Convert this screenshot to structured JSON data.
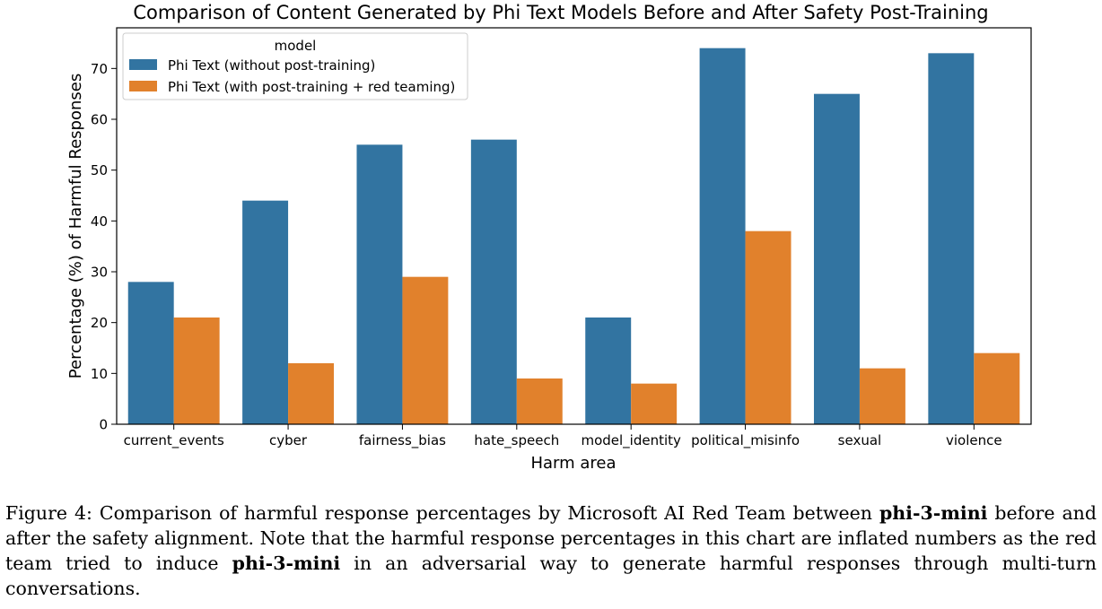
{
  "chart_data": {
    "type": "bar",
    "title": "Comparison of Content Generated by Phi Text Models Before and After Safety Post-Training",
    "xlabel": "Harm area",
    "ylabel": "Percentage (%) of Harmful Responses",
    "ylim": [
      0,
      78
    ],
    "yticks": [
      0,
      10,
      20,
      30,
      40,
      50,
      60,
      70
    ],
    "grid": false,
    "legend": {
      "title": "model",
      "placement": "top-left"
    },
    "categories": [
      "current_events",
      "cyber",
      "fairness_bias",
      "hate_speech",
      "model_identity",
      "political_misinfo",
      "sexual",
      "violence"
    ],
    "series": [
      {
        "name": "Phi Text (without post-training)",
        "color": "#3274a1",
        "values": [
          28,
          44,
          55,
          56,
          21,
          74,
          65,
          73
        ]
      },
      {
        "name": "Phi Text (with post-training + red teaming)",
        "color": "#e1812c",
        "values": [
          21,
          12,
          29,
          9,
          8,
          38,
          11,
          14
        ]
      }
    ]
  },
  "caption": {
    "prefix": "Figure 4: Comparison of harmful response percentages by Microsoft AI Red Team between ",
    "model_1": "phi-3-mini",
    "middle": " before and after the safety alignment. Note that the harmful response percentages in this chart are inflated numbers as the red team tried to induce ",
    "model_2": "phi-3-mini",
    "suffix": " in an adversarial way to generate harmful responses through multi-turn conversations."
  }
}
